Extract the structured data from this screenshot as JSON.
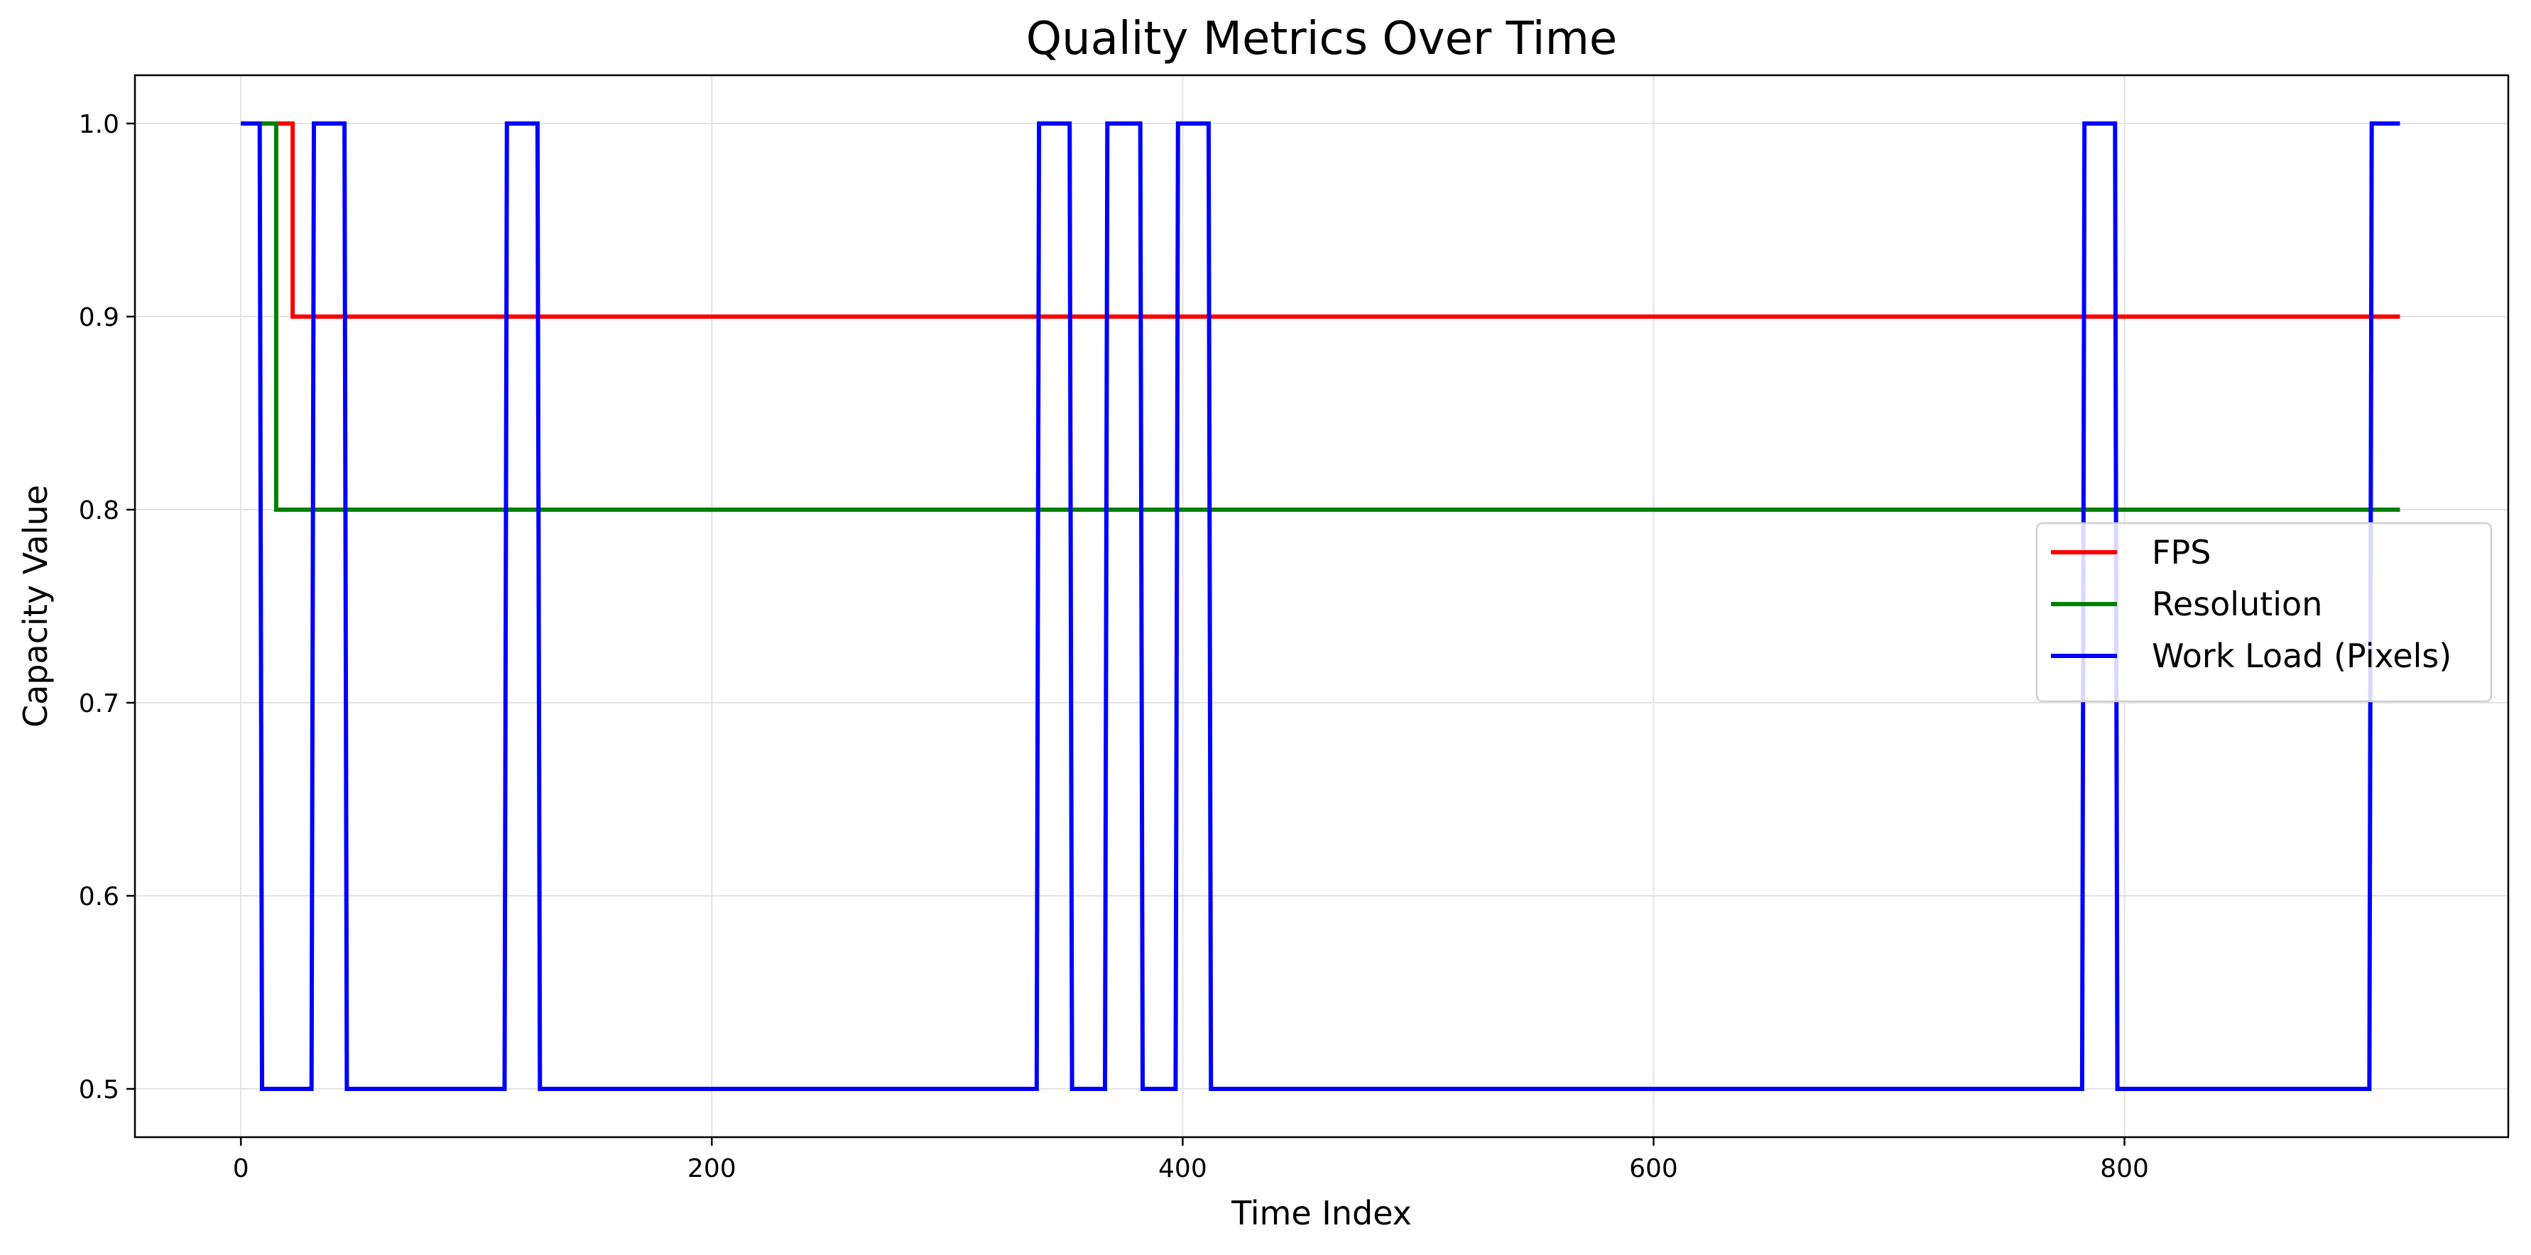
{
  "chart_data": {
    "type": "line",
    "title": "Quality Metrics Over Time",
    "xlabel": "Time Index",
    "ylabel": "Capacity Value",
    "xlim": [
      -45,
      963
    ],
    "ylim": [
      0.475,
      1.025
    ],
    "xticks": [
      0,
      200,
      400,
      600,
      800
    ],
    "yticks": [
      0.5,
      0.6,
      0.7,
      0.8,
      0.9,
      1.0
    ],
    "xtick_labels": [
      "0",
      "200",
      "400",
      "600",
      "800"
    ],
    "ytick_labels": [
      "0.5",
      "0.6",
      "0.7",
      "0.8",
      "0.9",
      "1.0"
    ],
    "grid": true,
    "legend_position": "center-right",
    "series": [
      {
        "name": "FPS",
        "color": "#ff0000",
        "x": [
          0,
          22,
          22,
          23,
          917
        ],
        "y": [
          1.0,
          1.0,
          0.9,
          0.9,
          0.9
        ]
      },
      {
        "name": "Resolution",
        "color": "#008000",
        "x": [
          0,
          15,
          15,
          16,
          917
        ],
        "y": [
          1.0,
          1.0,
          0.8,
          0.8,
          0.8
        ]
      },
      {
        "name": "Work Load (Pixels)",
        "color": "#0000ff",
        "x": [
          0,
          8,
          9,
          30,
          31,
          44,
          45,
          112,
          113,
          126,
          127,
          338,
          339,
          352,
          353,
          367,
          368,
          382,
          383,
          397,
          398,
          411,
          412,
          782,
          783,
          796,
          797,
          904,
          905,
          917
        ],
        "y": [
          1.0,
          1.0,
          0.5,
          0.5,
          1.0,
          1.0,
          0.5,
          0.5,
          1.0,
          1.0,
          0.5,
          0.5,
          1.0,
          1.0,
          0.5,
          0.5,
          1.0,
          1.0,
          0.5,
          0.5,
          1.0,
          1.0,
          0.5,
          0.5,
          1.0,
          1.0,
          0.5,
          0.5,
          1.0,
          1.0
        ]
      }
    ]
  }
}
